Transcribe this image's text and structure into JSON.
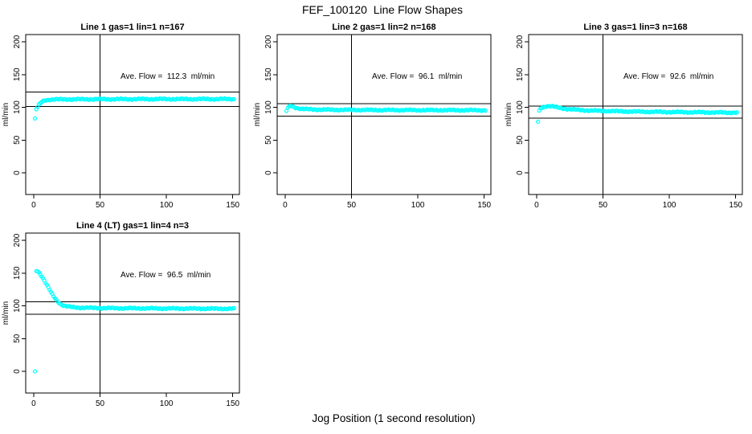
{
  "figure": {
    "title": "FEF_100120  Line Flow Shapes",
    "xlabel": "Jog Position (1 second resolution)",
    "ylabel": "ml/min",
    "background_color": "#FFFFFF",
    "point_color": "#00FFFF",
    "axis_color": "#000000"
  },
  "chart_data": [
    {
      "type": "scatter",
      "title": "Line 1 gas=1 lin=1 n=167",
      "n": 167,
      "ave_flow": 112.3,
      "ave_flow_label": "Ave. Flow =  112.3  ml/min",
      "xticks": [
        0,
        50,
        100,
        150
      ],
      "yticks": [
        0,
        50,
        100,
        150,
        200
      ],
      "xlim": [
        -6,
        155
      ],
      "ylim": [
        -33,
        211
      ],
      "vline_x": 50,
      "hlines": [
        123.5,
        101.1
      ],
      "control_points": [
        [
          1,
          83
        ],
        [
          2,
          97
        ],
        [
          3,
          100.5
        ],
        [
          4,
          103.5
        ],
        [
          5,
          106
        ],
        [
          6,
          108
        ],
        [
          7,
          109.5
        ],
        [
          9,
          111
        ],
        [
          12,
          111.8
        ],
        [
          16,
          112
        ],
        [
          25,
          112.2
        ],
        [
          50,
          112.4
        ],
        [
          100,
          112.6
        ],
        [
          151,
          112.6
        ]
      ]
    },
    {
      "type": "scatter",
      "title": "Line 2 gas=1 lin=2 n=168",
      "n": 168,
      "ave_flow": 96.1,
      "ave_flow_label": "Ave. Flow =  96.1  ml/min",
      "xticks": [
        0,
        50,
        100,
        150
      ],
      "yticks": [
        0,
        50,
        100,
        150,
        200
      ],
      "xlim": [
        -6,
        155
      ],
      "ylim": [
        -33,
        211
      ],
      "vline_x": 50,
      "hlines": [
        105.7,
        86.5
      ],
      "control_points": [
        [
          1,
          94.5
        ],
        [
          2,
          99.5
        ],
        [
          3,
          101.5
        ],
        [
          4,
          102.5
        ],
        [
          5,
          102
        ],
        [
          6,
          101
        ],
        [
          8,
          99.5
        ],
        [
          10,
          98.5
        ],
        [
          13,
          97.5
        ],
        [
          18,
          97
        ],
        [
          25,
          96.6
        ],
        [
          40,
          96.2
        ],
        [
          70,
          95.9
        ],
        [
          110,
          95.7
        ],
        [
          151,
          95.6
        ]
      ]
    },
    {
      "type": "scatter",
      "title": "Line 3 gas=1 lin=3 n=168",
      "n": 168,
      "ave_flow": 92.6,
      "ave_flow_label": "Ave. Flow =  92.6  ml/min",
      "xticks": [
        0,
        50,
        100,
        150
      ],
      "yticks": [
        0,
        50,
        100,
        150,
        200
      ],
      "xlim": [
        -6,
        155
      ],
      "ylim": [
        -33,
        211
      ],
      "vline_x": 50,
      "hlines": [
        101.9,
        83.3
      ],
      "control_points": [
        [
          1,
          78
        ],
        [
          2,
          95
        ],
        [
          3,
          98.5
        ],
        [
          5,
          100.5
        ],
        [
          7,
          101.5
        ],
        [
          9,
          102
        ],
        [
          12,
          101.5
        ],
        [
          15,
          100
        ],
        [
          18,
          98.8
        ],
        [
          22,
          97.8
        ],
        [
          28,
          96.6
        ],
        [
          35,
          95.6
        ],
        [
          45,
          94.8
        ],
        [
          60,
          94
        ],
        [
          80,
          93.3
        ],
        [
          105,
          92.7
        ],
        [
          130,
          92.2
        ],
        [
          151,
          91.9
        ]
      ]
    },
    {
      "type": "scatter",
      "title": "Line 4 (LT) gas=1 lin=4 n=3",
      "n": 3,
      "ave_flow": 96.5,
      "ave_flow_label": "Ave. Flow =  96.5  ml/min",
      "xticks": [
        0,
        50,
        100,
        150
      ],
      "yticks": [
        0,
        50,
        100,
        150,
        200
      ],
      "xlim": [
        -6,
        155
      ],
      "ylim": [
        -33,
        211
      ],
      "vline_x": 50,
      "hlines": [
        106.2,
        86.9
      ],
      "control_points": [
        [
          1,
          0
        ],
        [
          2,
          153
        ],
        [
          3,
          152.5
        ],
        [
          4,
          151
        ],
        [
          5,
          148.5
        ],
        [
          6,
          145.5
        ],
        [
          7,
          142
        ],
        [
          8,
          138.5
        ],
        [
          9,
          135
        ],
        [
          10,
          131.5
        ],
        [
          11,
          128
        ],
        [
          12,
          124.5
        ],
        [
          13,
          121
        ],
        [
          14,
          117.5
        ],
        [
          15,
          114.5
        ],
        [
          16,
          111.8
        ],
        [
          17,
          109.3
        ],
        [
          18,
          107
        ],
        [
          19,
          105
        ],
        [
          20,
          103.3
        ],
        [
          22,
          100.9
        ],
        [
          24,
          99.6
        ],
        [
          27,
          98.5
        ],
        [
          30,
          97.9
        ],
        [
          35,
          97.3
        ],
        [
          45,
          96.8
        ],
        [
          60,
          96.4
        ],
        [
          90,
          96.1
        ],
        [
          120,
          95.8
        ],
        [
          151,
          95.6
        ]
      ]
    }
  ]
}
